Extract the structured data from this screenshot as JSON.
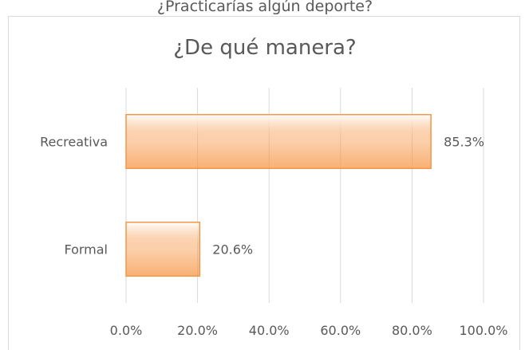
{
  "heading": "¿Practicarías algún deporte?",
  "chart_data": {
    "type": "barh",
    "title": "¿De qué manera?",
    "categories": [
      "Recreativa",
      "Formal"
    ],
    "values": [
      85.3,
      20.6
    ],
    "value_labels": [
      "85.3%",
      "20.6%"
    ],
    "color": "#f79646",
    "xlim": [
      0,
      100
    ],
    "xticks": [
      {
        "value": 0,
        "label": "0.0%"
      },
      {
        "value": 20,
        "label": "20.0%"
      },
      {
        "value": 40,
        "label": "40.0%"
      },
      {
        "value": 60,
        "label": "60.0%"
      },
      {
        "value": 80,
        "label": "80.0%"
      },
      {
        "value": 100,
        "label": "100.0%"
      }
    ],
    "grid": true
  }
}
